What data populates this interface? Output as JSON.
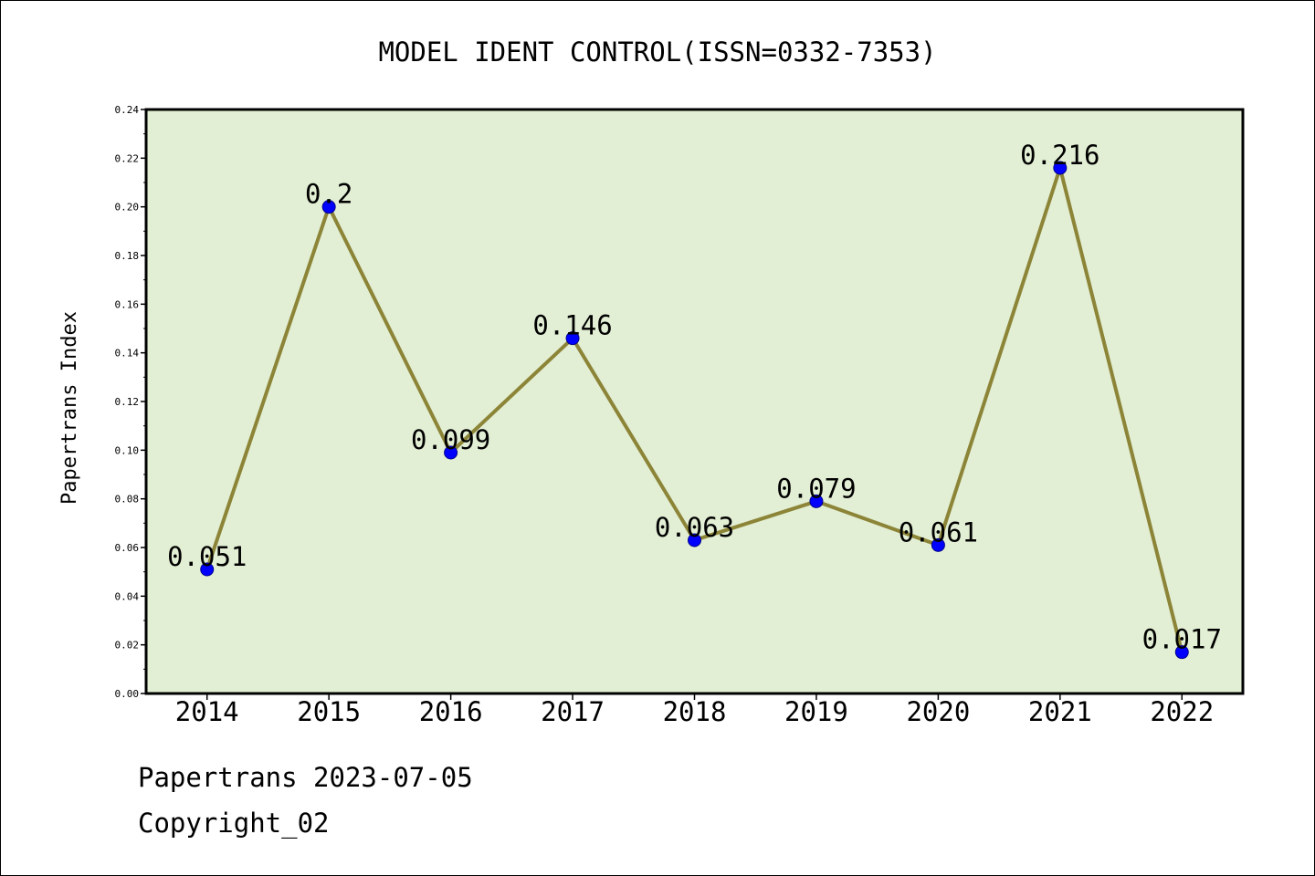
{
  "chart_data": {
    "type": "line",
    "title": "MODEL IDENT CONTROL(ISSN=0332-7353)",
    "xlabel": "",
    "ylabel": "Papertrans Index",
    "categories": [
      "2014",
      "2015",
      "2016",
      "2017",
      "2018",
      "2019",
      "2020",
      "2021",
      "2022"
    ],
    "series": [
      {
        "values": [
          0.051,
          0.2,
          0.099,
          0.146,
          0.063,
          0.079,
          0.061,
          0.216,
          0.017
        ],
        "data_labels": [
          "0.051",
          "0.2",
          "0.099",
          "0.146",
          "0.063",
          "0.079",
          "0.061",
          "0.216",
          "0.017"
        ]
      }
    ],
    "ylim": [
      0,
      0.24
    ],
    "y_ticks": [
      "0.00",
      "0.02",
      "0.04",
      "0.06",
      "0.08",
      "0.10",
      "0.12",
      "0.14",
      "0.16",
      "0.18",
      "0.20",
      "0.22",
      "0.24"
    ],
    "grid": false,
    "legend": "none",
    "colors": {
      "plot_background": "#e2efd4",
      "line": "#8c8437",
      "marker": "#0000ff",
      "marker_edge": "#00008b",
      "axes": "#000000"
    }
  },
  "footer": {
    "line1": "Papertrans 2023-07-05",
    "line2": "Copyright_02"
  }
}
